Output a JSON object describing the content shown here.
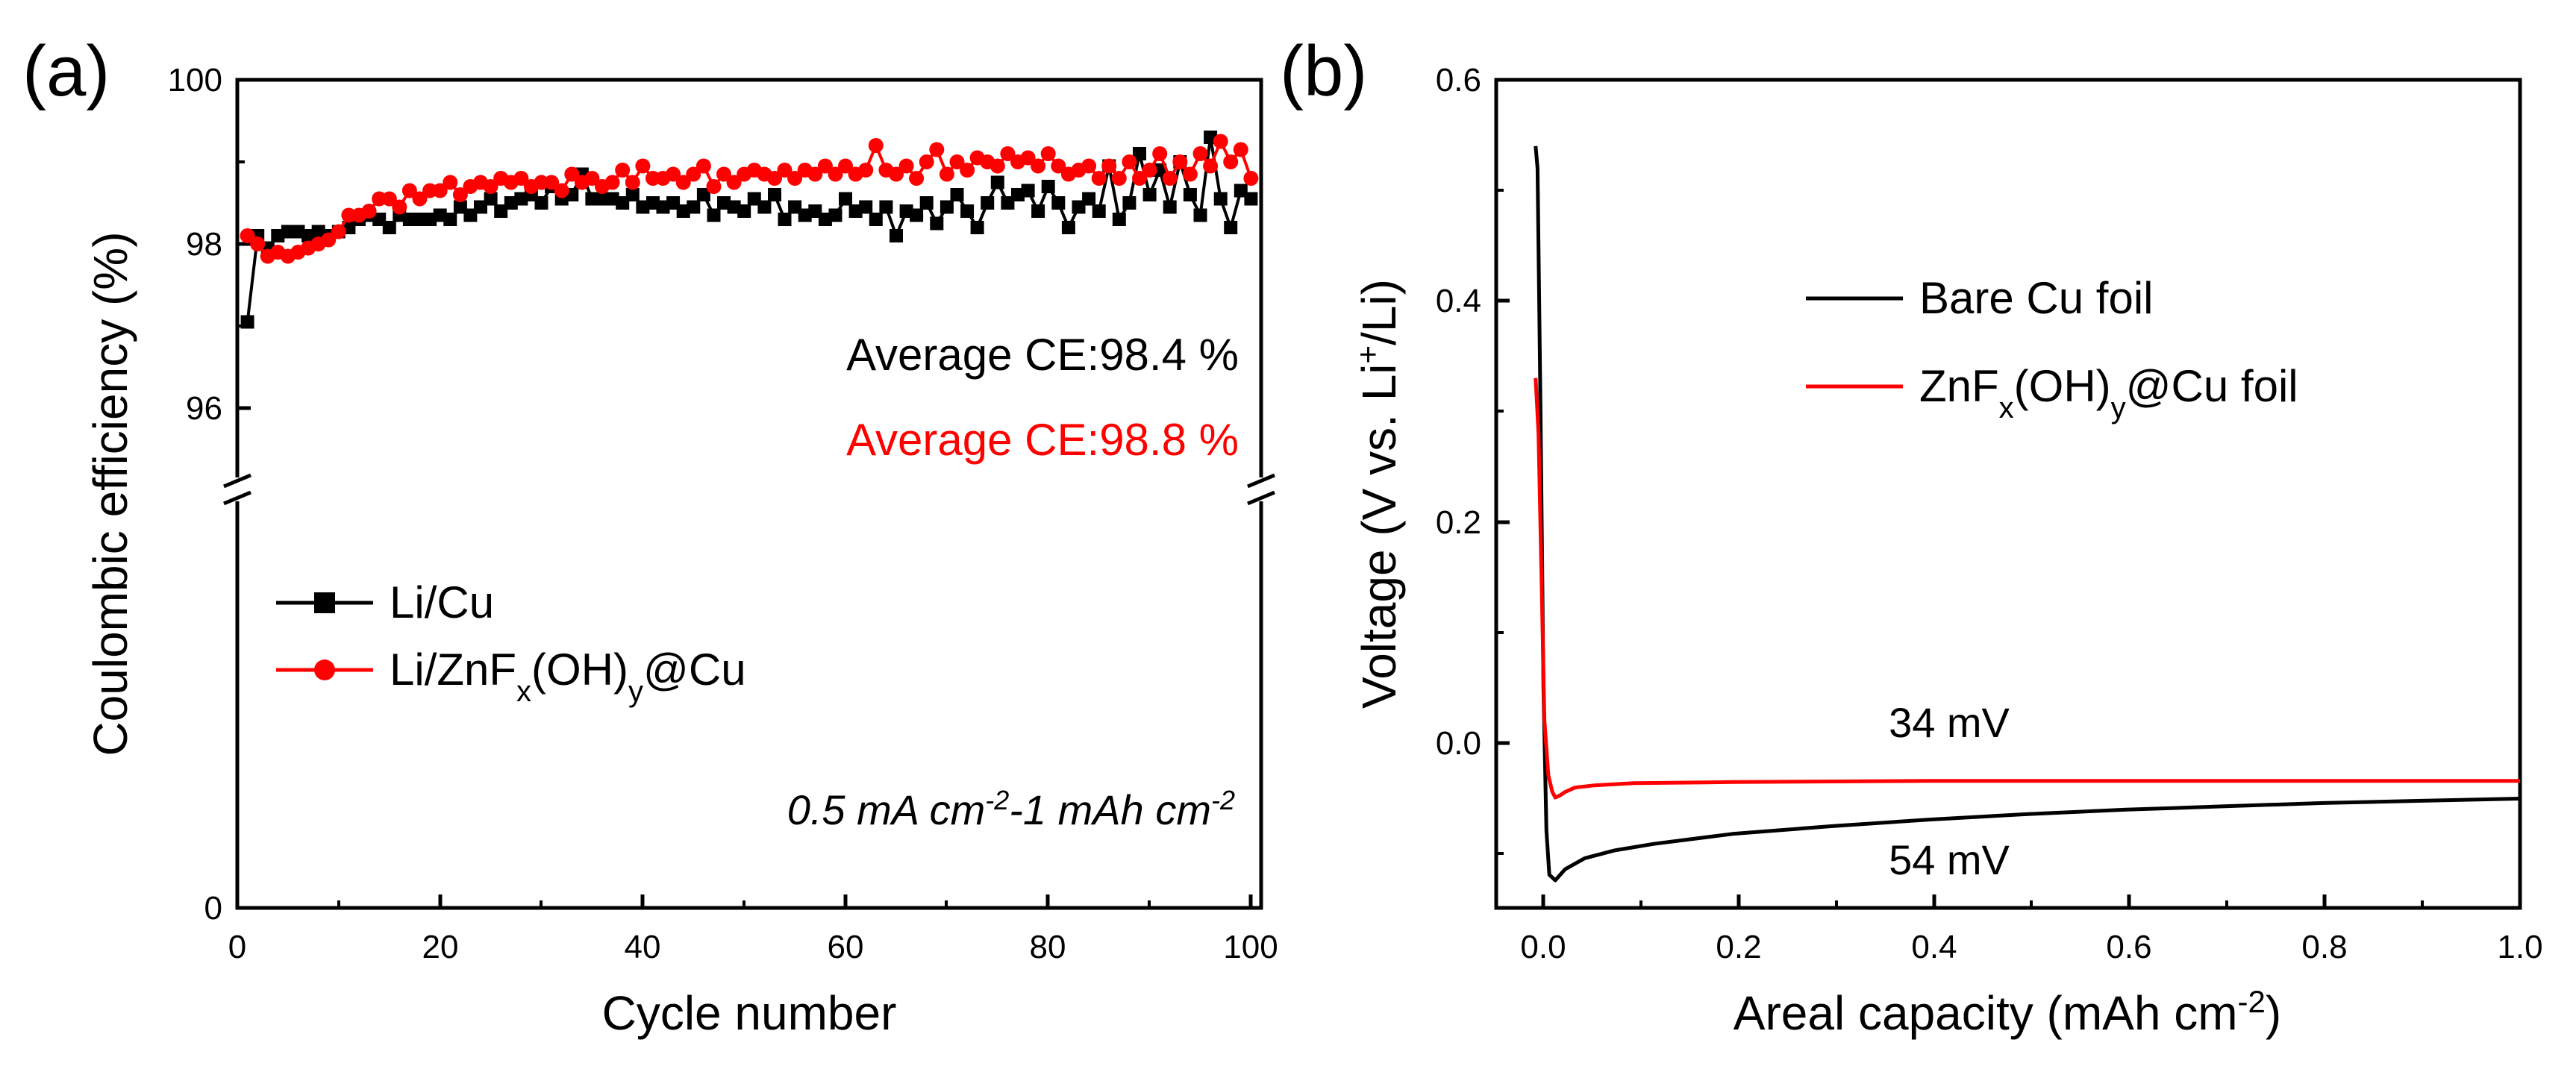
{
  "chart_data": [
    {
      "panel_label": "(a)",
      "type": "line",
      "title": "",
      "xlabel": "Cycle number",
      "ylabel": "Coulombic efficiency (%)",
      "xlim": [
        0,
        101
      ],
      "xticks": [
        "0",
        "20",
        "40",
        "60",
        "80",
        "100"
      ],
      "yticks": [
        "0",
        "96",
        "98",
        "100"
      ],
      "y_axis_break": {
        "lower_segment": [
          0,
          5
        ],
        "upper_segment": [
          95,
          100
        ]
      },
      "annotations": {
        "avg_black": "Average CE:98.4 %",
        "avg_red": "Average CE:98.8 %",
        "condition_parts": [
          "0.5 mA cm",
          "-2",
          "-1 mAh cm",
          "-2"
        ]
      },
      "legend": [
        {
          "name_parts": [
            "Li/Cu"
          ],
          "color": "#000000",
          "marker": "square"
        },
        {
          "name_parts": [
            "Li/ZnF",
            "x",
            "(OH)",
            "y",
            "@Cu"
          ],
          "color": "#ff0000",
          "marker": "circle"
        }
      ],
      "series": [
        {
          "name": "Li/Cu",
          "color": "#000000",
          "x": [
            1,
            2,
            3,
            4,
            5,
            6,
            7,
            8,
            9,
            10,
            11,
            12,
            13,
            14,
            15,
            16,
            17,
            18,
            19,
            20,
            21,
            22,
            23,
            24,
            25,
            26,
            27,
            28,
            29,
            30,
            31,
            32,
            33,
            34,
            35,
            36,
            37,
            38,
            39,
            40,
            41,
            42,
            43,
            44,
            45,
            46,
            47,
            48,
            49,
            50,
            51,
            52,
            53,
            54,
            55,
            56,
            57,
            58,
            59,
            60,
            61,
            62,
            63,
            64,
            65,
            66,
            67,
            68,
            69,
            70,
            71,
            72,
            73,
            74,
            75,
            76,
            77,
            78,
            79,
            80,
            81,
            82,
            83,
            84,
            85,
            86,
            87,
            88,
            89,
            90,
            91,
            92,
            93,
            94,
            95,
            96,
            97,
            98,
            99,
            100
          ],
          "values": [
            97.05,
            98.1,
            97.95,
            98.1,
            98.15,
            98.15,
            98.1,
            98.15,
            98.1,
            98.15,
            98.2,
            98.3,
            98.35,
            98.3,
            98.2,
            98.35,
            98.3,
            98.3,
            98.3,
            98.35,
            98.3,
            98.45,
            98.35,
            98.45,
            98.55,
            98.4,
            98.5,
            98.55,
            98.6,
            98.5,
            98.7,
            98.55,
            98.6,
            98.85,
            98.55,
            98.55,
            98.55,
            98.5,
            98.6,
            98.45,
            98.5,
            98.45,
            98.5,
            98.4,
            98.45,
            98.6,
            98.35,
            98.5,
            98.45,
            98.4,
            98.55,
            98.45,
            98.6,
            98.3,
            98.45,
            98.35,
            98.4,
            98.3,
            98.35,
            98.55,
            98.4,
            98.45,
            98.3,
            98.45,
            98.1,
            98.4,
            98.35,
            98.5,
            98.25,
            98.45,
            98.6,
            98.4,
            98.2,
            98.5,
            98.75,
            98.5,
            98.6,
            98.65,
            98.4,
            98.7,
            98.5,
            98.2,
            98.45,
            98.55,
            98.4,
            98.95,
            98.3,
            98.5,
            99.1,
            98.6,
            98.9,
            98.45,
            99.0,
            98.6,
            98.35,
            99.3,
            98.55,
            98.2,
            98.65,
            98.55
          ]
        },
        {
          "name": "Li/ZnFx(OH)y@Cu",
          "color": "#ff0000",
          "x": [
            1,
            2,
            3,
            4,
            5,
            6,
            7,
            8,
            9,
            10,
            11,
            12,
            13,
            14,
            15,
            16,
            17,
            18,
            19,
            20,
            21,
            22,
            23,
            24,
            25,
            26,
            27,
            28,
            29,
            30,
            31,
            32,
            33,
            34,
            35,
            36,
            37,
            38,
            39,
            40,
            41,
            42,
            43,
            44,
            45,
            46,
            47,
            48,
            49,
            50,
            51,
            52,
            53,
            54,
            55,
            56,
            57,
            58,
            59,
            60,
            61,
            62,
            63,
            64,
            65,
            66,
            67,
            68,
            69,
            70,
            71,
            72,
            73,
            74,
            75,
            76,
            77,
            78,
            79,
            80,
            81,
            82,
            83,
            84,
            85,
            86,
            87,
            88,
            89,
            90,
            91,
            92,
            93,
            94,
            95,
            96,
            97,
            98,
            99,
            100
          ],
          "values": [
            98.1,
            98.0,
            97.85,
            97.9,
            97.85,
            97.9,
            97.95,
            98.0,
            98.05,
            98.15,
            98.35,
            98.35,
            98.4,
            98.55,
            98.55,
            98.45,
            98.65,
            98.55,
            98.65,
            98.65,
            98.75,
            98.6,
            98.7,
            98.75,
            98.7,
            98.8,
            98.75,
            98.8,
            98.7,
            98.75,
            98.75,
            98.65,
            98.85,
            98.75,
            98.8,
            98.7,
            98.75,
            98.9,
            98.75,
            98.95,
            98.8,
            98.8,
            98.85,
            98.75,
            98.85,
            98.95,
            98.7,
            98.85,
            98.75,
            98.85,
            98.9,
            98.85,
            98.8,
            98.9,
            98.8,
            98.9,
            98.85,
            98.95,
            98.85,
            98.95,
            98.85,
            98.9,
            99.2,
            98.9,
            98.85,
            98.95,
            98.8,
            99.0,
            99.15,
            98.85,
            99.0,
            98.9,
            99.05,
            99.0,
            98.95,
            99.1,
            99.0,
            99.05,
            98.95,
            99.1,
            98.95,
            98.85,
            98.9,
            98.95,
            98.8,
            98.95,
            98.8,
            99.0,
            98.8,
            98.9,
            99.1,
            98.8,
            99.0,
            98.85,
            99.1,
            98.95,
            99.25,
            99.0,
            99.15,
            98.8
          ]
        }
      ]
    },
    {
      "panel_label": "(b)",
      "type": "line",
      "title": "",
      "xlabel_parts": [
        "Areal capacity (mAh cm",
        "-2",
        ")"
      ],
      "ylabel_parts": [
        "Voltage (V vs. Li",
        "+",
        "/Li)"
      ],
      "xlim": [
        -0.04,
        1.0
      ],
      "ylim": [
        -0.15,
        0.6
      ],
      "xticks": [
        "0.0",
        "0.2",
        "0.4",
        "0.6",
        "0.8",
        "1.0"
      ],
      "yticks": [
        "0.0",
        "0.2",
        "0.4",
        "0.6"
      ],
      "annotations": {
        "red_overpotential": "34 mV",
        "black_overpotential": "54 mV"
      },
      "legend": [
        {
          "name_parts": [
            "Bare Cu foil"
          ],
          "color": "#000000"
        },
        {
          "name_parts": [
            "ZnF",
            "x",
            "(OH)",
            "y",
            "@Cu foil"
          ],
          "color": "#ff0000"
        }
      ],
      "series": [
        {
          "name": "Bare Cu foil",
          "color": "#000000",
          "x": [
            0.0,
            0.002,
            0.005,
            0.008,
            0.011,
            0.014,
            0.02,
            0.03,
            0.05,
            0.08,
            0.12,
            0.2,
            0.3,
            0.4,
            0.5,
            0.6,
            0.7,
            0.8,
            0.9,
            1.0
          ],
          "values": [
            0.54,
            0.52,
            0.3,
            0.05,
            -0.08,
            -0.12,
            -0.125,
            -0.115,
            -0.105,
            -0.098,
            -0.092,
            -0.083,
            -0.076,
            -0.07,
            -0.065,
            -0.061,
            -0.058,
            -0.055,
            -0.053,
            -0.051
          ]
        },
        {
          "name": "ZnFx(OH)y@Cu foil",
          "color": "#ff0000",
          "x": [
            0.0,
            0.003,
            0.006,
            0.009,
            0.013,
            0.017,
            0.02,
            0.025,
            0.03,
            0.04,
            0.06,
            0.1,
            0.2,
            0.4,
            0.6,
            0.8,
            1.0
          ],
          "values": [
            0.33,
            0.28,
            0.15,
            0.02,
            -0.03,
            -0.045,
            -0.05,
            -0.048,
            -0.045,
            -0.041,
            -0.039,
            -0.037,
            -0.036,
            -0.035,
            -0.035,
            -0.035,
            -0.035
          ]
        }
      ]
    }
  ]
}
